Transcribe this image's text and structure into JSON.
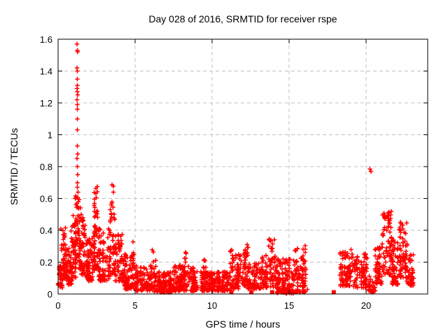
{
  "window": {
    "background": "#ffffff"
  },
  "chart_data": {
    "type": "scatter",
    "title": "Day 028 of 2016, SRMTID for receiver rspe",
    "xlabel": "GPS time / hours",
    "ylabel": "SRMTID / TECUs",
    "xlim": [
      0,
      24
    ],
    "ylim": [
      0,
      1.6
    ],
    "xticks": [
      0,
      5,
      10,
      15,
      20
    ],
    "xtick_labels": [
      "0",
      "5",
      "10",
      "15",
      "20"
    ],
    "yticks": [
      0,
      0.2,
      0.4,
      0.6,
      0.8,
      1.0,
      1.2,
      1.4,
      1.6
    ],
    "ytick_labels": [
      "0",
      "0.2",
      "0.4",
      "0.6",
      "0.8",
      "1",
      "1.2",
      "1.4",
      "1.6"
    ],
    "grid": true,
    "grid_style": "dashed",
    "grid_color": "#c0c0c0",
    "axis_color": "#000000",
    "legend": "none",
    "marker": {
      "shape": "plus",
      "color": "#ff0000",
      "size": 7
    },
    "seed": 42,
    "series": [
      {
        "name": "SRMTID",
        "representation": "density-bands",
        "bands_format": [
          "hour_start",
          "hour_end",
          "y_min",
          "y_max",
          "n_points",
          "skew_exponent"
        ],
        "bands": [
          [
            0.0,
            0.3,
            0.04,
            0.18,
            30,
            1.3
          ],
          [
            0.2,
            0.55,
            0.1,
            0.42,
            55,
            1.5
          ],
          [
            0.5,
            0.9,
            0.06,
            0.3,
            55,
            1.5
          ],
          [
            0.85,
            1.15,
            0.1,
            0.5,
            50,
            1.6
          ],
          [
            1.1,
            1.4,
            0.18,
            0.62,
            45,
            1.2
          ],
          [
            1.35,
            1.8,
            0.12,
            0.48,
            60,
            1.5
          ],
          [
            1.8,
            2.25,
            0.08,
            0.35,
            70,
            1.4
          ],
          [
            2.25,
            2.6,
            0.15,
            0.56,
            55,
            1.6
          ],
          [
            2.35,
            2.55,
            0.45,
            0.68,
            12,
            1.0
          ],
          [
            2.6,
            3.35,
            0.08,
            0.42,
            90,
            1.7
          ],
          [
            3.35,
            3.7,
            0.12,
            0.55,
            45,
            1.5
          ],
          [
            3.4,
            3.6,
            0.45,
            0.69,
            10,
            1.0
          ],
          [
            3.7,
            4.3,
            0.08,
            0.38,
            70,
            1.7
          ],
          [
            4.3,
            5.0,
            0.03,
            0.25,
            80,
            1.8
          ],
          [
            4.7,
            4.9,
            0.15,
            0.33,
            8,
            1.0
          ],
          [
            5.0,
            6.2,
            0.02,
            0.18,
            110,
            1.6
          ],
          [
            6.0,
            6.45,
            0.1,
            0.28,
            12,
            1.2
          ],
          [
            6.2,
            7.4,
            0.01,
            0.14,
            130,
            1.5
          ],
          [
            7.4,
            8.5,
            0.02,
            0.18,
            120,
            1.6
          ],
          [
            8.2,
            8.45,
            0.12,
            0.28,
            10,
            1.0
          ],
          [
            8.5,
            9.6,
            0.02,
            0.17,
            110,
            1.6
          ],
          [
            9.4,
            9.6,
            0.1,
            0.23,
            8,
            1.0
          ],
          [
            9.6,
            11.2,
            0.02,
            0.14,
            150,
            1.5
          ],
          [
            11.2,
            11.8,
            0.03,
            0.28,
            60,
            1.6
          ],
          [
            11.8,
            12.35,
            0.05,
            0.32,
            55,
            1.5
          ],
          [
            12.35,
            13.1,
            0.03,
            0.2,
            70,
            1.5
          ],
          [
            13.1,
            13.65,
            0.04,
            0.25,
            55,
            1.5
          ],
          [
            13.65,
            14.15,
            0.04,
            0.35,
            50,
            1.4
          ],
          [
            14.15,
            15.3,
            0.005,
            0.22,
            130,
            1.8
          ],
          [
            15.3,
            16.2,
            0.01,
            0.3,
            80,
            1.5
          ],
          [
            15.9,
            16.1,
            0.15,
            0.33,
            10,
            1.0
          ],
          [
            18.25,
            19.2,
            0.05,
            0.28,
            90,
            1.5
          ],
          [
            19.2,
            20.1,
            0.04,
            0.26,
            80,
            1.5
          ],
          [
            20.1,
            20.6,
            0.02,
            0.12,
            25,
            1.3
          ],
          [
            20.6,
            21.05,
            0.06,
            0.3,
            50,
            1.4
          ],
          [
            21.05,
            21.65,
            0.12,
            0.52,
            75,
            1.3
          ],
          [
            21.65,
            22.15,
            0.06,
            0.35,
            60,
            1.5
          ],
          [
            22.15,
            22.65,
            0.1,
            0.46,
            70,
            1.4
          ],
          [
            22.65,
            23.15,
            0.05,
            0.25,
            45,
            1.5
          ]
        ],
        "spike_points": [
          [
            1.22,
            1.57
          ],
          [
            1.24,
            1.53
          ],
          [
            1.27,
            1.52
          ],
          [
            1.22,
            1.42
          ],
          [
            1.25,
            1.4
          ],
          [
            1.24,
            1.35
          ],
          [
            1.26,
            1.31
          ],
          [
            1.22,
            1.29
          ],
          [
            1.25,
            1.27
          ],
          [
            1.28,
            1.25
          ],
          [
            1.23,
            1.22
          ],
          [
            1.26,
            1.19
          ],
          [
            1.24,
            1.16
          ],
          [
            1.25,
            1.1
          ],
          [
            1.26,
            1.03
          ],
          [
            1.24,
            0.93
          ],
          [
            1.27,
            0.88
          ],
          [
            1.23,
            0.85
          ],
          [
            1.25,
            0.8
          ],
          [
            1.27,
            0.75
          ],
          [
            1.24,
            0.7
          ],
          [
            1.26,
            0.67
          ],
          [
            1.29,
            0.64
          ],
          [
            1.31,
            0.58
          ],
          [
            1.28,
            0.55
          ],
          [
            1.45,
            0.54
          ],
          [
            1.5,
            0.5
          ]
        ],
        "outlier_points": [
          [
            20.25,
            0.785
          ],
          [
            20.32,
            0.77
          ]
        ],
        "zero_cluster_hours": [
          11.25,
          12.55,
          13.9,
          14.55,
          15.1,
          15.45,
          17.9,
          20.4
        ],
        "data_gap_hours": [
          16.2,
          18.25
        ]
      }
    ]
  }
}
